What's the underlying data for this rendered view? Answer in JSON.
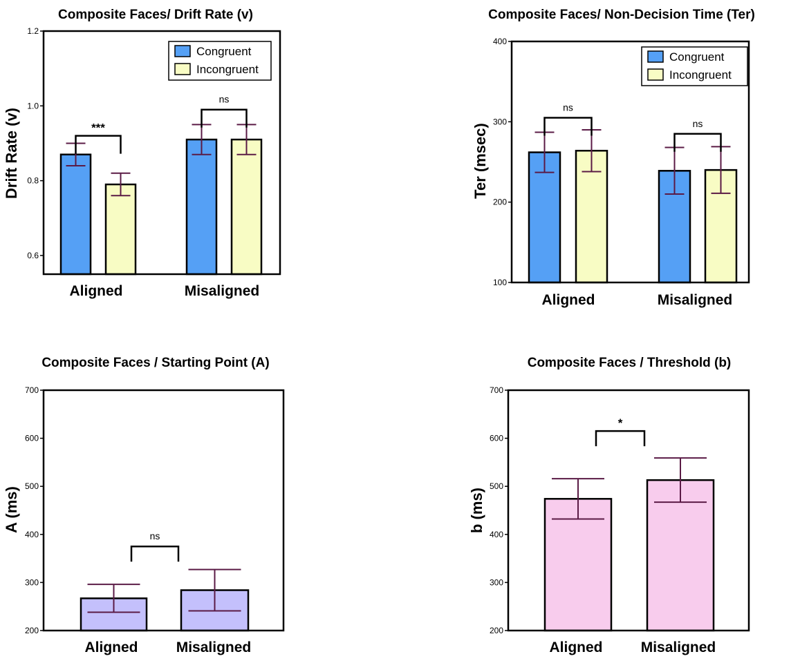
{
  "colors": {
    "congruent": "#55a0f5",
    "incongruent": "#f8fcc4",
    "starting_point": "#c4c0fc",
    "threshold": "#f8cced",
    "error_bar": "#5a1a45",
    "axis": "#000000"
  },
  "chart_data": [
    {
      "id": "drift",
      "type": "bar",
      "title": "Composite Faces/ Drift Rate (v)",
      "ylabel": "Drift Rate  (v)",
      "xlabel": "",
      "categories": [
        "Aligned",
        "Misaligned"
      ],
      "ylim": [
        0.55,
        1.2
      ],
      "yticks": [
        0.6,
        0.8,
        1.0,
        1.2
      ],
      "ytick_labels": [
        "0.6",
        "0.8",
        "1.0",
        "1.2"
      ],
      "series": [
        {
          "name": "Congruent",
          "color_key": "congruent",
          "values": [
            0.87,
            0.91
          ],
          "error": [
            0.03,
            0.04
          ]
        },
        {
          "name": "Incongruent",
          "color_key": "incongruent",
          "values": [
            0.79,
            0.91
          ],
          "error": [
            0.03,
            0.04
          ]
        }
      ],
      "legend": {
        "position": "top-right",
        "entries": [
          "Congruent",
          "Incongruent"
        ]
      },
      "significance": [
        {
          "category": 0,
          "label": "***",
          "y": 0.92
        },
        {
          "category": 1,
          "label": "ns",
          "y": 0.99
        }
      ]
    },
    {
      "id": "ter",
      "type": "bar",
      "title": "Composite Faces/ Non-Decision Time  (Ter)",
      "ylabel": "Ter  (msec)",
      "xlabel": "",
      "categories": [
        "Aligned",
        "Misaligned"
      ],
      "ylim": [
        100,
        400
      ],
      "yticks": [
        100,
        200,
        300,
        400
      ],
      "ytick_labels": [
        "100",
        "200",
        "300",
        "400"
      ],
      "series": [
        {
          "name": "Congruent",
          "color_key": "congruent",
          "values": [
            262,
            239
          ],
          "error": [
            25,
            29
          ]
        },
        {
          "name": "Incongruent",
          "color_key": "incongruent",
          "values": [
            264,
            240
          ],
          "error": [
            26,
            29
          ]
        }
      ],
      "legend": {
        "position": "top-right",
        "entries": [
          "Congruent",
          "Incongruent"
        ]
      },
      "significance": [
        {
          "category": 0,
          "label": "ns",
          "y": 305
        },
        {
          "category": 1,
          "label": "ns",
          "y": 285
        }
      ]
    },
    {
      "id": "start",
      "type": "bar",
      "title": "Composite Faces / Starting Point (A)",
      "ylabel": "A (ms)",
      "xlabel": "",
      "categories": [
        "Aligned",
        "Misaligned"
      ],
      "ylim": [
        200,
        700
      ],
      "yticks": [
        200,
        300,
        400,
        500,
        600,
        700
      ],
      "ytick_labels": [
        "200",
        "300",
        "400",
        "500",
        "600",
        "700"
      ],
      "color_key": "starting_point",
      "values": [
        267,
        284
      ],
      "error": [
        29,
        43
      ],
      "significance": [
        {
          "from": 0,
          "to": 1,
          "label": "ns",
          "y": 375
        }
      ]
    },
    {
      "id": "threshold",
      "type": "bar",
      "title": "Composite Faces / Threshold  (b)",
      "ylabel": "b (ms)",
      "xlabel": "",
      "categories": [
        "Aligned",
        "Misaligned"
      ],
      "ylim": [
        200,
        700
      ],
      "yticks": [
        200,
        300,
        400,
        500,
        600,
        700
      ],
      "ytick_labels": [
        "200",
        "300",
        "400",
        "500",
        "600",
        "700"
      ],
      "color_key": "threshold",
      "values": [
        474,
        513
      ],
      "error": [
        42,
        46
      ],
      "significance": [
        {
          "from": 0,
          "to": 1,
          "label": "*",
          "y": 615
        }
      ]
    }
  ]
}
